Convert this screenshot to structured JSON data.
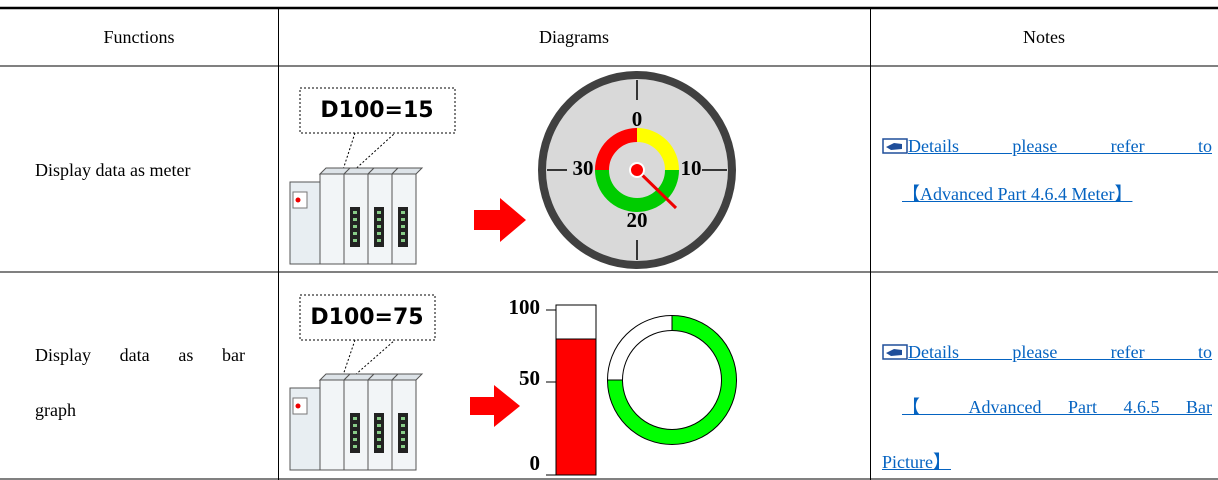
{
  "table": {
    "headers": [
      "Functions",
      "Diagrams",
      "Notes"
    ],
    "rows": [
      {
        "function": [
          "Display data as meter"
        ],
        "diagram": {
          "register": "D100=15",
          "labels": [
            "0",
            "10",
            "20",
            "30"
          ]
        },
        "note": [
          "Details please refer to",
          "【Advanced Part 4.6.4 Meter】"
        ]
      },
      {
        "function": [
          "Display data as bar",
          "graph"
        ],
        "diagram": {
          "register": "D100=75",
          "labels": [
            "100",
            "50",
            "0"
          ]
        },
        "note": [
          "Details please refer to",
          "【 Advanced Part 4.6.5 Bar",
          "Picture】"
        ]
      }
    ]
  }
}
